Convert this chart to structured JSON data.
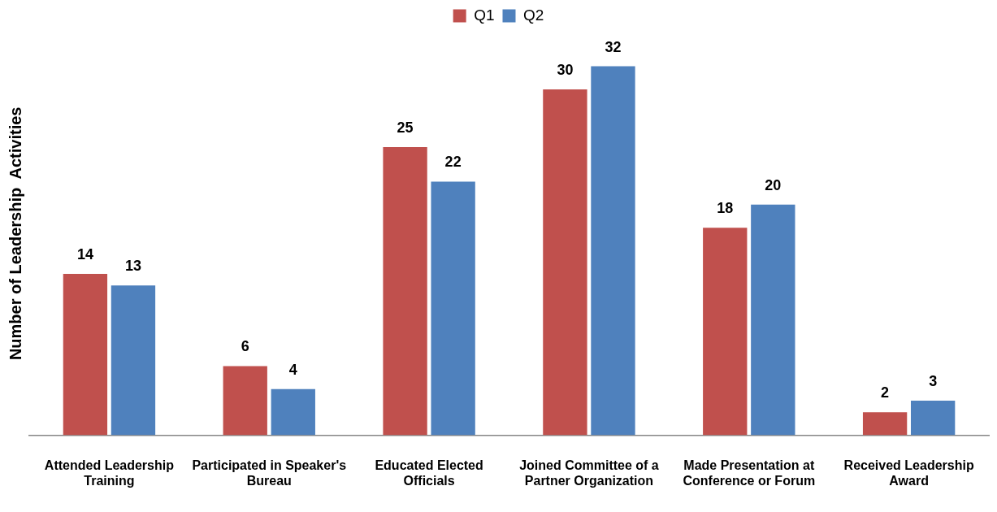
{
  "chart_data": {
    "type": "bar",
    "ylabel": "Number of Leadership  Activities",
    "categories": [
      "Attended Leadership Training",
      "Participated in Speaker's Bureau",
      "Educated Elected Officials",
      "Joined Committee of a Partner Organization",
      "Made Presentation at Conference or Forum",
      "Received Leadership Award"
    ],
    "series": [
      {
        "name": "Q1",
        "color": "#c0504d",
        "values": [
          14,
          6,
          25,
          30,
          18,
          2
        ]
      },
      {
        "name": "Q2",
        "color": "#4f81bd",
        "values": [
          13,
          4,
          22,
          32,
          20,
          3
        ]
      }
    ],
    "data_labels": true,
    "legend": "top",
    "grid": false,
    "tick_labels": "x"
  }
}
